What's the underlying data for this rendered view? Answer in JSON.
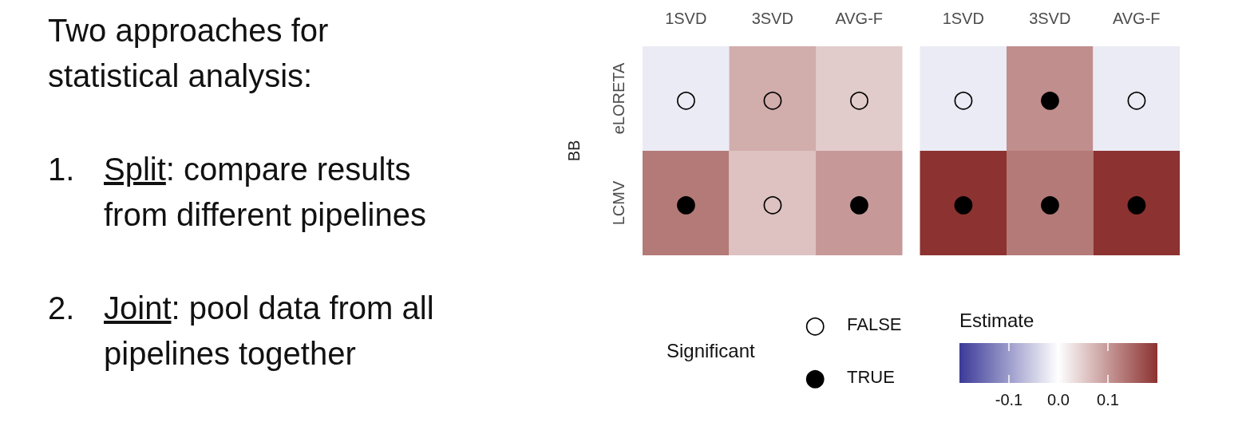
{
  "chart_data": [
    {
      "type": "other",
      "title": "Two approaches for statistical analysis:",
      "annotations": [
        "1. Split: compare results from different pipelines",
        "2. Joint: pool data from all pipelines together"
      ]
    },
    {
      "type": "heatmap",
      "ylabel": "BB",
      "categories": [
        "1SVD",
        "3SVD",
        "AVG-F",
        "1SVD",
        "3SVD",
        "AVG-F"
      ],
      "y_categories": [
        "eLORETA",
        "LCMV"
      ],
      "cells": [
        [
          -0.02,
          0.08,
          0.05,
          -0.02,
          0.11,
          -0.02
        ],
        [
          0.13,
          0.06,
          0.1,
          0.2,
          0.13,
          0.2
        ]
      ],
      "cell_labels": [
        [
          "○",
          "○",
          "○",
          "○",
          "●",
          "○"
        ],
        [
          "●",
          "○",
          "●",
          "●",
          "●",
          "●"
        ]
      ],
      "clim": [
        -0.2,
        0.2
      ],
      "cticks": [
        -0.1,
        {
          "value": 0,
          "label": "0.0"
        },
        0.1
      ],
      "clabel": "Estimate",
      "legend_title": "Significant",
      "annotations": [
        "○ FALSE",
        "● TRUE"
      ]
    }
  ]
}
